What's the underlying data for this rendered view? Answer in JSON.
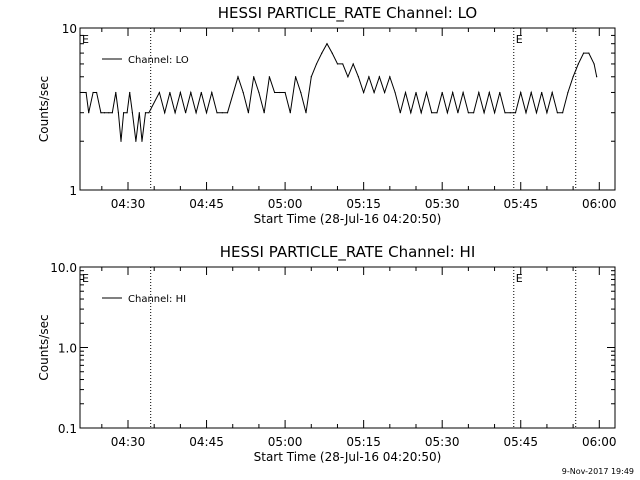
{
  "footer": {
    "timestamp": "9-Nov-2017 19:49"
  },
  "chart_data": [
    {
      "type": "line",
      "title": "HESSI PARTICLE_RATE Channel: LO",
      "xlabel": "Start Time (28-Jul-16 04:20:50)",
      "ylabel": "Counts/sec",
      "yscale": "log",
      "ylim": [
        1,
        10
      ],
      "yticks": [
        "1",
        "10"
      ],
      "xlim": [
        "04:20:50",
        "06:03:00"
      ],
      "xticks": [
        "04:30",
        "04:45",
        "05:00",
        "05:15",
        "05:30",
        "05:45",
        "06:00"
      ],
      "grid": false,
      "legend_position": "top-left",
      "event_lines": [
        "04:34:20",
        "05:43:40",
        "05:55:30"
      ],
      "event_labels": [
        {
          "text": "E",
          "at": "04:20:50"
        },
        {
          "text": "E",
          "at": "05:43:40"
        }
      ],
      "series": [
        {
          "name": "Channel: LO",
          "color": "#000000",
          "x": [
            "04:20:50",
            "04:22:00",
            "04:22:30",
            "04:23:20",
            "04:24:00",
            "04:24:50",
            "04:25:30",
            "04:26:20",
            "04:27:00",
            "04:27:40",
            "04:28:10",
            "04:28:40",
            "04:29:10",
            "04:29:50",
            "04:30:20",
            "04:30:50",
            "04:31:30",
            "04:32:10",
            "04:32:40",
            "04:33:20",
            "04:34:00",
            "04:36:00",
            "04:37:00",
            "04:38:00",
            "04:39:00",
            "04:40:00",
            "04:41:00",
            "04:42:00",
            "04:43:00",
            "04:44:00",
            "04:45:00",
            "04:46:00",
            "04:47:00",
            "04:48:00",
            "04:49:00",
            "04:51:00",
            "04:52:00",
            "04:53:00",
            "04:54:00",
            "04:55:00",
            "04:56:00",
            "04:57:00",
            "04:58:00",
            "04:59:00",
            "05:00:00",
            "05:01:00",
            "05:02:00",
            "05:03:00",
            "05:04:00",
            "05:05:00",
            "05:06:00",
            "05:07:00",
            "05:08:00",
            "05:09:00",
            "05:10:00",
            "05:11:00",
            "05:12:00",
            "05:13:00",
            "05:14:00",
            "05:15:00",
            "05:16:00",
            "05:17:00",
            "05:18:00",
            "05:19:00",
            "05:20:00",
            "05:21:00",
            "05:22:00",
            "05:23:00",
            "05:24:00",
            "05:25:00",
            "05:26:00",
            "05:27:00",
            "05:28:00",
            "05:29:00",
            "05:30:00",
            "05:31:00",
            "05:32:00",
            "05:33:00",
            "05:34:00",
            "05:35:00",
            "05:36:00",
            "05:37:00",
            "05:38:00",
            "05:39:00",
            "05:40:00",
            "05:41:00",
            "05:42:00",
            "05:43:00",
            "05:44:00",
            "05:45:00",
            "05:46:00",
            "05:47:00",
            "05:48:00",
            "05:49:00",
            "05:50:00",
            "05:51:00",
            "05:52:00",
            "05:53:00",
            "05:54:00",
            "05:55:00",
            "05:56:00",
            "05:57:00",
            "05:58:00",
            "05:59:00",
            "05:59:30"
          ],
          "y": [
            4,
            4,
            3,
            4,
            4,
            3,
            3,
            3,
            3,
            4,
            3,
            2,
            3,
            3,
            4,
            3,
            2,
            3,
            2,
            3,
            3,
            4,
            3,
            4,
            3,
            4,
            3,
            4,
            3,
            4,
            3,
            4,
            3,
            3,
            3,
            5,
            4,
            3,
            5,
            4,
            3,
            5,
            4,
            4,
            4,
            3,
            5,
            4,
            3,
            5,
            6,
            7,
            8,
            7,
            6,
            6,
            5,
            6,
            5,
            4,
            5,
            4,
            5,
            4,
            5,
            4,
            3,
            4,
            3,
            4,
            3,
            4,
            3,
            3,
            4,
            3,
            4,
            3,
            4,
            3,
            3,
            4,
            3,
            4,
            3,
            4,
            3,
            3,
            3,
            4,
            3,
            4,
            3,
            4,
            3,
            4,
            3,
            3,
            4,
            5,
            6,
            7,
            7,
            6,
            5
          ]
        }
      ]
    },
    {
      "type": "line",
      "title": "HESSI PARTICLE_RATE Channel: HI",
      "xlabel": "Start Time (28-Jul-16 04:20:50)",
      "ylabel": "Counts/sec",
      "yscale": "log",
      "ylim": [
        0.1,
        10
      ],
      "yticks": [
        "0.1",
        "1.0",
        "10.0"
      ],
      "xlim": [
        "04:20:50",
        "06:03:00"
      ],
      "xticks": [
        "04:30",
        "04:45",
        "05:00",
        "05:15",
        "05:30",
        "05:45",
        "06:00"
      ],
      "grid": false,
      "legend_position": "top-left",
      "event_lines": [
        "04:34:20",
        "05:43:40",
        "05:55:30"
      ],
      "event_labels": [
        {
          "text": "E",
          "at": "04:20:50"
        },
        {
          "text": "E",
          "at": "05:43:40"
        }
      ],
      "series": [
        {
          "name": "Channel: HI",
          "color": "#000000",
          "x": [],
          "y": []
        }
      ]
    }
  ]
}
